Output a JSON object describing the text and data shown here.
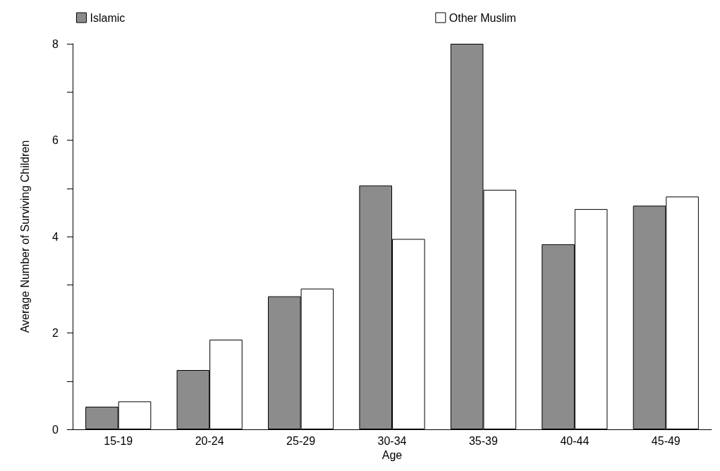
{
  "chart_data": {
    "type": "bar",
    "xlabel": "Age",
    "ylabel": "Average Number of Surviving Children",
    "categories": [
      "15-19",
      "20-24",
      "25-29",
      "30-34",
      "35-39",
      "40-44",
      "45-49"
    ],
    "series": [
      {
        "name": "Islamic",
        "color": "#8c8c8c",
        "values": [
          0.47,
          1.23,
          2.76,
          5.06,
          8.0,
          3.84,
          4.64
        ]
      },
      {
        "name": "Other Muslim",
        "color": "#ffffff",
        "values": [
          0.58,
          1.86,
          2.92,
          3.95,
          4.97,
          4.57,
          4.83
        ]
      }
    ],
    "ylim": [
      0,
      8
    ],
    "yticks": [
      0,
      {
        "value": 1,
        "label": null
      },
      2,
      {
        "value": 3,
        "label": null
      },
      4,
      {
        "value": 5,
        "label": null
      },
      6,
      {
        "value": 7,
        "label": null
      },
      8
    ],
    "grid": false,
    "legend": "top"
  }
}
